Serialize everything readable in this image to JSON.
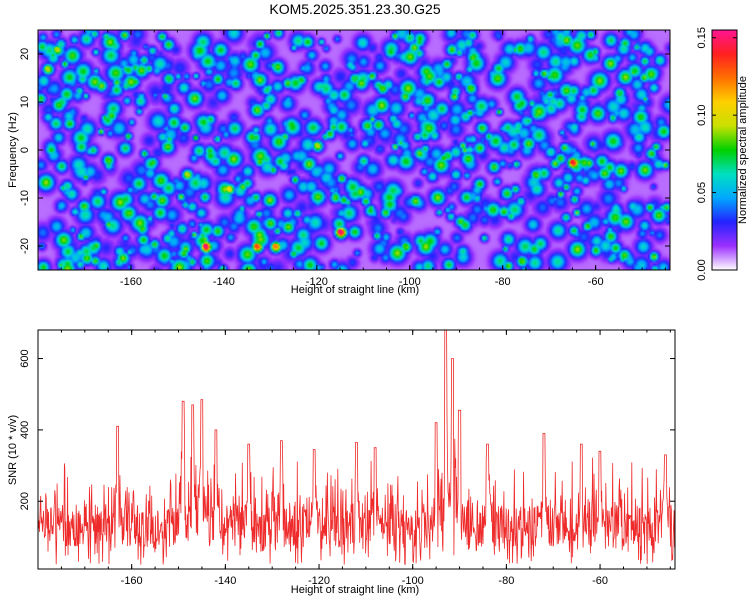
{
  "title": "KOM5.2025.351.23.30.G25",
  "chart_data": [
    {
      "type": "heatmap",
      "name": "spectrogram",
      "xlabel": "Height of straight line (km)",
      "ylabel": "Frequency (Hz)",
      "xlim": [
        -180,
        -44
      ],
      "ylim": [
        -25,
        25
      ],
      "xticks": [
        -160,
        -140,
        -120,
        -100,
        -80,
        -60
      ],
      "yticks": [
        -20,
        -10,
        0,
        10,
        20
      ],
      "xtick_labels": [
        "-160",
        "-140",
        "-120",
        "-100",
        "-80",
        "-60"
      ],
      "ytick_labels": [
        "-20",
        "-10",
        "0",
        "10",
        "20"
      ],
      "colorbar": {
        "label": "Normalized spectral amplitude",
        "range": [
          0.0,
          0.155
        ],
        "ticks": [
          0.0,
          0.05,
          0.1,
          0.15
        ],
        "tick_labels": [
          "0.00",
          "0.05",
          "0.10",
          "0.15"
        ],
        "colormap": [
          "#ffffff",
          "#9b30ff",
          "#2323ff",
          "#00a8ff",
          "#00e0c0",
          "#00d000",
          "#c8e000",
          "#ffd000",
          "#ff7000",
          "#ff2020",
          "#ff1493"
        ]
      },
      "peaks": [
        {
          "x": -144,
          "y": -20,
          "amp": 0.15
        },
        {
          "x": -133,
          "y": -20,
          "amp": 0.13
        },
        {
          "x": -129,
          "y": -20,
          "amp": 0.12
        },
        {
          "x": -115,
          "y": -17,
          "amp": 0.15
        },
        {
          "x": -65,
          "y": -2.5,
          "amp": 0.14
        },
        {
          "x": -176,
          "y": 21,
          "amp": 0.09
        },
        {
          "x": -178,
          "y": 17,
          "amp": 0.09
        },
        {
          "x": -148,
          "y": -5,
          "amp": 0.09
        },
        {
          "x": -139,
          "y": -8,
          "amp": 0.1
        },
        {
          "x": -120,
          "y": 1,
          "amp": 0.09
        },
        {
          "x": -106,
          "y": 13,
          "amp": 0.08
        },
        {
          "x": -87,
          "y": 13,
          "amp": 0.08
        },
        {
          "x": -73,
          "y": -5,
          "amp": 0.08
        },
        {
          "x": -55,
          "y": 12,
          "amp": 0.07
        },
        {
          "x": -165,
          "y": -2,
          "amp": 0.08
        },
        {
          "x": -101,
          "y": -20,
          "amp": 0.08
        },
        {
          "x": -76,
          "y": -23,
          "amp": 0.08
        },
        {
          "x": -92,
          "y": -1,
          "amp": 0.07
        },
        {
          "x": -112,
          "y": 15,
          "amp": 0.07
        },
        {
          "x": -152,
          "y": 15,
          "amp": 0.07
        }
      ]
    },
    {
      "type": "line",
      "name": "snr",
      "xlabel": "Height of straight line (km)",
      "ylabel": "SNR (10 * v/v)",
      "xlim": [
        -180,
        -44
      ],
      "ylim": [
        10,
        680
      ],
      "xticks": [
        -160,
        -140,
        -120,
        -100,
        -80,
        -60
      ],
      "yticks": [
        200,
        400,
        600
      ],
      "xtick_labels": [
        "-160",
        "-140",
        "-120",
        "-100",
        "-80",
        "-60"
      ],
      "ytick_labels": [
        "200",
        "400",
        "600"
      ],
      "color": "#ee2a2a",
      "baseline": 130,
      "noise_range": [
        20,
        330
      ],
      "spikes": [
        {
          "x": -163,
          "y": 410
        },
        {
          "x": -149,
          "y": 480
        },
        {
          "x": -147,
          "y": 470
        },
        {
          "x": -145,
          "y": 485
        },
        {
          "x": -142,
          "y": 400
        },
        {
          "x": -135,
          "y": 360
        },
        {
          "x": -128,
          "y": 370
        },
        {
          "x": -121,
          "y": 345
        },
        {
          "x": -112,
          "y": 365
        },
        {
          "x": -108,
          "y": 350
        },
        {
          "x": -95,
          "y": 420
        },
        {
          "x": -93,
          "y": 680
        },
        {
          "x": -91.5,
          "y": 600
        },
        {
          "x": -90,
          "y": 455
        },
        {
          "x": -84,
          "y": 360
        },
        {
          "x": -72,
          "y": 390
        },
        {
          "x": -64,
          "y": 360
        },
        {
          "x": -60,
          "y": 340
        },
        {
          "x": -46,
          "y": 330
        }
      ]
    }
  ]
}
